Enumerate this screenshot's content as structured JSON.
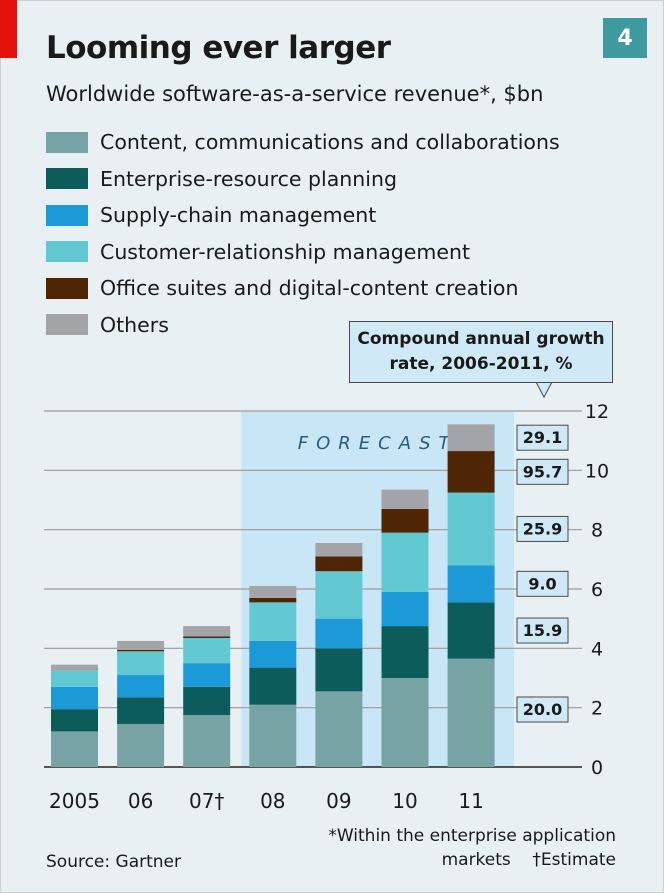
{
  "header": {
    "badge": "4",
    "title": "Looming ever larger",
    "subtitle": "Worldwide software-as-a-service revenue*, $bn"
  },
  "legend": [
    {
      "label": "Content, communications and collaborations",
      "color": "#78a3a5"
    },
    {
      "label": "Enterprise-resource planning",
      "color": "#0d5c5c"
    },
    {
      "label": "Supply-chain management",
      "color": "#1b9ad7"
    },
    {
      "label": "Customer-relationship management",
      "color": "#62c9d2"
    },
    {
      "label": "Office suites and digital-content creation",
      "color": "#4e2505"
    },
    {
      "label": "Others",
      "color": "#a3a4a7"
    }
  ],
  "callout": {
    "line1": "Compound annual growth",
    "line2": "rate, 2006-2011, %"
  },
  "chart_data": {
    "type": "bar",
    "stacked": true,
    "categories": [
      "2005",
      "06",
      "07†",
      "08",
      "09",
      "10",
      "11"
    ],
    "series": [
      {
        "name": "Content, communications and collaborations",
        "values": [
          1.2,
          1.45,
          1.75,
          2.1,
          2.55,
          3.0,
          3.65
        ],
        "cagr": "20.0"
      },
      {
        "name": "Enterprise-resource planning",
        "values": [
          0.75,
          0.9,
          0.95,
          1.25,
          1.45,
          1.75,
          1.9
        ],
        "cagr": "15.9"
      },
      {
        "name": "Supply-chain management",
        "values": [
          0.75,
          0.75,
          0.8,
          0.9,
          1.0,
          1.15,
          1.25
        ],
        "cagr": "9.0"
      },
      {
        "name": "Customer-relationship management",
        "values": [
          0.55,
          0.8,
          0.85,
          1.3,
          1.6,
          2.0,
          2.45
        ],
        "cagr": "25.9"
      },
      {
        "name": "Office suites and digital-content creation",
        "values": [
          0.0,
          0.05,
          0.05,
          0.15,
          0.5,
          0.8,
          1.4
        ],
        "cagr": "95.7"
      },
      {
        "name": "Others",
        "values": [
          0.2,
          0.3,
          0.35,
          0.4,
          0.45,
          0.65,
          0.9
        ],
        "cagr": "29.1"
      }
    ],
    "ylim": [
      0,
      12
    ],
    "yticks": [
      "0",
      "2",
      "4",
      "6",
      "8",
      "10",
      "12"
    ],
    "forecast_label": "FORECAST",
    "forecast_from_index": 3,
    "grid": true
  },
  "footnotes": {
    "line1": "*Within the enterprise application",
    "line2": "markets    †Estimate"
  },
  "source": "Source: Gartner"
}
